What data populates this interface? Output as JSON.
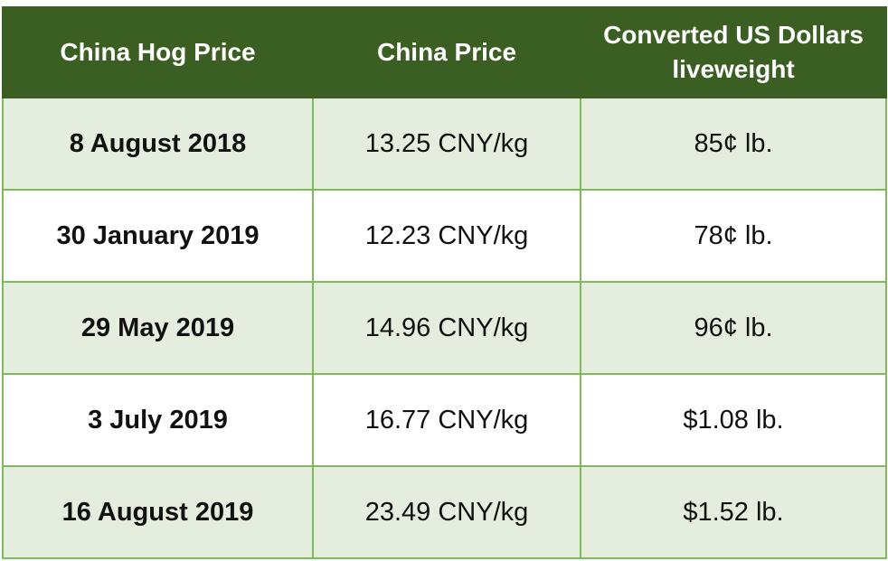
{
  "table": {
    "headers": [
      "China Hog Price",
      "China Price",
      "Converted US Dollars liveweight"
    ],
    "rows": [
      [
        "8 August 2018",
        "13.25 CNY/kg",
        "85¢ lb."
      ],
      [
        "30 January 2019",
        "12.23 CNY/kg",
        "78¢ lb."
      ],
      [
        "29 May 2019",
        "14.96 CNY/kg",
        "96¢ lb."
      ],
      [
        "3 July 2019",
        "16.77 CNY/kg",
        "$1.08 lb."
      ],
      [
        "16 August 2019",
        "23.49 CNY/kg",
        "$1.52 lb."
      ]
    ]
  }
}
